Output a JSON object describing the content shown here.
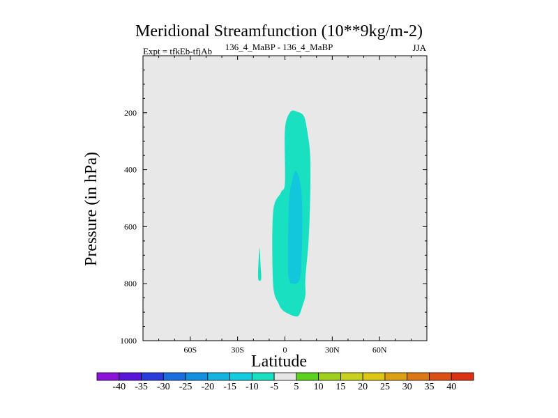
{
  "chart_data": {
    "type": "heatmap",
    "title": "Meridional Streamfunction (10**9kg/m-2)",
    "subtitle_left": "Expt = tfkEb-tfjAb",
    "subtitle_center": "136_4_MaBP - 136_4_MaBP",
    "subtitle_right": "JJA",
    "xlabel": "Latitude",
    "ylabel": "Pressure (in hPa)",
    "x_ticks": [
      "60S",
      "30S",
      "0",
      "30N",
      "60N"
    ],
    "x_tick_values": [
      -60,
      -30,
      0,
      30,
      60
    ],
    "xlim": [
      -90,
      90
    ],
    "y_ticks": [
      "200",
      "400",
      "600",
      "800",
      "1000"
    ],
    "y_tick_values": [
      200,
      400,
      600,
      800,
      1000
    ],
    "ylim": [
      1000,
      0
    ],
    "background_color": "#e8e8e8",
    "contours": [
      {
        "level": "-10 to -5",
        "color": "#19e0c0",
        "points": [
          [
            3.5,
            197
          ],
          [
            8,
            197
          ],
          [
            12,
            212
          ],
          [
            14,
            260
          ],
          [
            16,
            350
          ],
          [
            16,
            500
          ],
          [
            15,
            650
          ],
          [
            13,
            780
          ],
          [
            13,
            840
          ],
          [
            11,
            880
          ],
          [
            9,
            910
          ],
          [
            7,
            915
          ],
          [
            4,
            910
          ],
          [
            -1,
            895
          ],
          [
            -4,
            870
          ],
          [
            -7.5,
            800
          ],
          [
            -7.5,
            550
          ],
          [
            -2.5,
            480
          ],
          [
            0,
            445
          ],
          [
            0,
            260
          ]
        ]
      },
      {
        "level": "-10 to -5",
        "color": "#19e0c0",
        "points": [
          [
            -16,
            675
          ],
          [
            -15.5,
            730
          ],
          [
            -15,
            780
          ],
          [
            -16,
            790
          ],
          [
            -17,
            780
          ],
          [
            -16.8,
            730
          ]
        ]
      },
      {
        "level": "-15 to -10",
        "color": "#12c6dc",
        "points": [
          [
            7,
            405
          ],
          [
            10,
            455
          ],
          [
            11,
            560
          ],
          [
            10.5,
            720
          ],
          [
            9,
            790
          ],
          [
            5,
            800
          ],
          [
            3,
            790
          ],
          [
            2,
            740
          ],
          [
            2.5,
            520
          ],
          [
            4.5,
            440
          ]
        ]
      }
    ],
    "colorbar": {
      "labels": [
        "-40",
        "-35",
        "-30",
        "-25",
        "-20",
        "-15",
        "-10",
        "-5",
        "5",
        "10",
        "15",
        "20",
        "25",
        "30",
        "35",
        "40"
      ],
      "colors": [
        "#8a14dc",
        "#5a14dc",
        "#2a3cdc",
        "#1a6ee0",
        "#1490e0",
        "#14b4e0",
        "#12cce0",
        "#19e0c0",
        "#e6e6e6",
        "#5ad21e",
        "#a0d01e",
        "#c8d21e",
        "#dcc814",
        "#dca014",
        "#dc7814",
        "#dc5014",
        "#dc3214"
      ]
    }
  }
}
